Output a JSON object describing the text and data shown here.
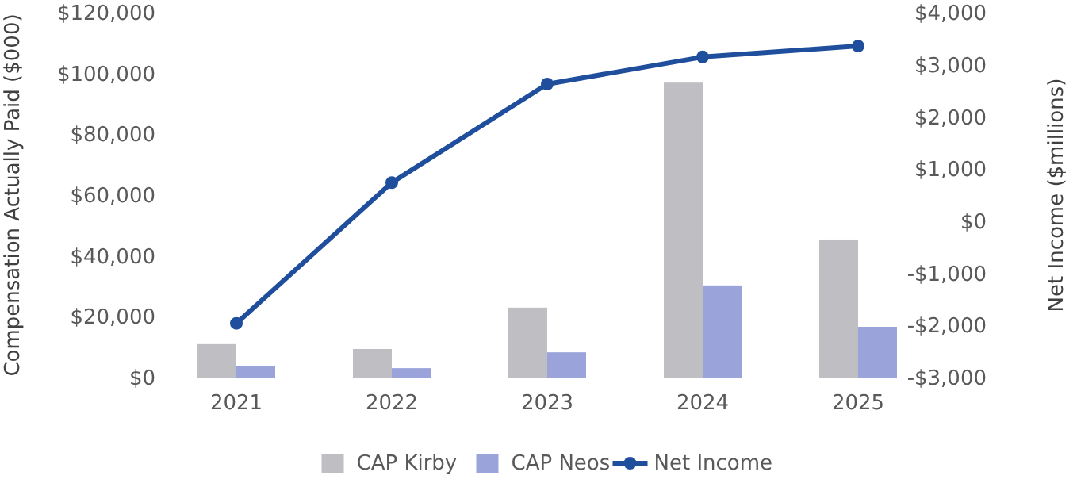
{
  "chart_data": {
    "type": "bar",
    "ylabel": "Compensation Actually Paid ($000)",
    "y2label": "Net Income ($millions)",
    "categories": [
      "2021",
      "2022",
      "2023",
      "2024",
      "2025"
    ],
    "series": [
      {
        "name": "CAP Kirby",
        "color": "#bfbfc3",
        "values": [
          11000,
          9400,
          23000,
          97000,
          45400
        ]
      },
      {
        "name": "CAP Neos",
        "color": "#9aa4da",
        "values": [
          3700,
          3100,
          8300,
          30300,
          16700
        ]
      },
      {
        "name": "Net Income",
        "type": "line",
        "axis": "y2",
        "color": "#1f4e9c",
        "values": [
          -1960,
          740,
          2630,
          3150,
          3360
        ]
      }
    ],
    "ylim": [
      0,
      120000
    ],
    "yticks": [
      {
        "value": 0,
        "label": "$0"
      },
      {
        "value": 20000,
        "label": "$20,000"
      },
      {
        "value": 40000,
        "label": "$40,000"
      },
      {
        "value": 60000,
        "label": "$60,000"
      },
      {
        "value": 80000,
        "label": "$80,000"
      },
      {
        "value": 100000,
        "label": "$100,000"
      },
      {
        "value": 120000,
        "label": "$120,000"
      }
    ],
    "y2lim": [
      -3000,
      4000
    ],
    "y2ticks": [
      {
        "value": -3000,
        "label": "-$3,000"
      },
      {
        "value": -2000,
        "label": "-$2,000"
      },
      {
        "value": -1000,
        "label": "-$1,000"
      },
      {
        "value": 0,
        "label": "$0"
      },
      {
        "value": 1000,
        "label": "$1,000"
      },
      {
        "value": 2000,
        "label": "$2,000"
      },
      {
        "value": 3000,
        "label": "$3,000"
      },
      {
        "value": 4000,
        "label": "$4,000"
      }
    ],
    "marker": "circle",
    "legend": "bottom"
  }
}
